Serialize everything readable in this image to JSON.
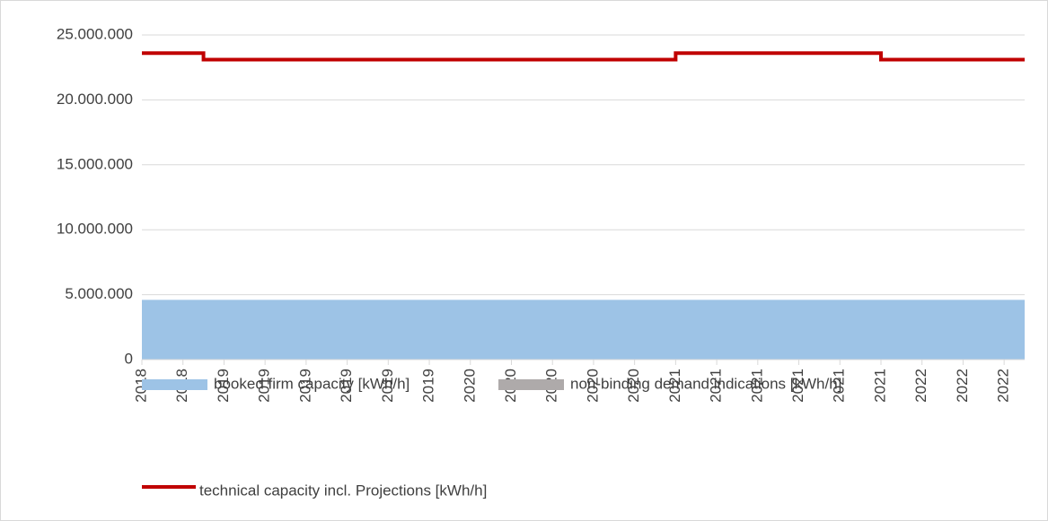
{
  "chart_data": {
    "type": "area",
    "categories": [
      "2018",
      null,
      "2018",
      null,
      "2019",
      null,
      "2019",
      null,
      "2019",
      null,
      "2019",
      null,
      "2019",
      null,
      "2019",
      null,
      "2020",
      null,
      "2020",
      null,
      "2020",
      null,
      "2020",
      null,
      "2020",
      null,
      "2021",
      null,
      "2021",
      null,
      "2021",
      null,
      "2021",
      null,
      "2021",
      null,
      "2021",
      null,
      "2022",
      null,
      "2022",
      null,
      "2022",
      null
    ],
    "series": [
      {
        "name": "booked firm capacity [kWh/h]",
        "color": "#9dc3e6",
        "kind": "area",
        "values": [
          4600000,
          4600000,
          4600000,
          4600000,
          4600000,
          4600000,
          4600000,
          4600000,
          4600000,
          4600000,
          4600000,
          4600000,
          4600000,
          4600000,
          4600000,
          4600000,
          4600000,
          4600000,
          4600000,
          4600000,
          4600000,
          4600000,
          4600000,
          4600000,
          4600000,
          4600000,
          4600000,
          4600000,
          4600000,
          4600000,
          4600000,
          4600000,
          4600000,
          4600000,
          4600000,
          4600000,
          4600000,
          4600000,
          4600000,
          4600000,
          4600000,
          4600000,
          4600000,
          4600000
        ]
      },
      {
        "name": "non-binding demand indications [kWh/h]",
        "color": "#aeaaaa",
        "kind": "area",
        "values": [
          0,
          0,
          0,
          0,
          0,
          0,
          0,
          0,
          0,
          0,
          0,
          0,
          0,
          0,
          0,
          0,
          0,
          0,
          0,
          0,
          0,
          0,
          0,
          0,
          0,
          0,
          0,
          0,
          0,
          0,
          0,
          0,
          0,
          0,
          0,
          0,
          0,
          0,
          0,
          0,
          0,
          0,
          0,
          0
        ]
      },
      {
        "name": "technical capacity incl. Projections [kWh/h]",
        "color": "#c00000",
        "kind": "step-line",
        "values": [
          23600000,
          23600000,
          23600000,
          23100000,
          23100000,
          23100000,
          23100000,
          23100000,
          23100000,
          23100000,
          23100000,
          23100000,
          23100000,
          23100000,
          23100000,
          23100000,
          23100000,
          23100000,
          23100000,
          23100000,
          23100000,
          23100000,
          23100000,
          23100000,
          23100000,
          23100000,
          23600000,
          23600000,
          23600000,
          23600000,
          23600000,
          23600000,
          23600000,
          23600000,
          23600000,
          23600000,
          23100000,
          23100000,
          23100000,
          23100000,
          23100000,
          23100000,
          23100000,
          23100000
        ]
      }
    ],
    "ylim": [
      0,
      25000000
    ],
    "yticks": [
      0,
      {
        "value": 5000000,
        "label": "5.000.000"
      },
      {
        "value": 10000000,
        "label": "10.000.000"
      },
      {
        "value": 15000000,
        "label": "15.000.000"
      },
      {
        "value": 20000000,
        "label": "20.000.000"
      },
      {
        "value": 25000000,
        "label": "25.000.000"
      }
    ],
    "grid": true,
    "legend": "bottom"
  }
}
